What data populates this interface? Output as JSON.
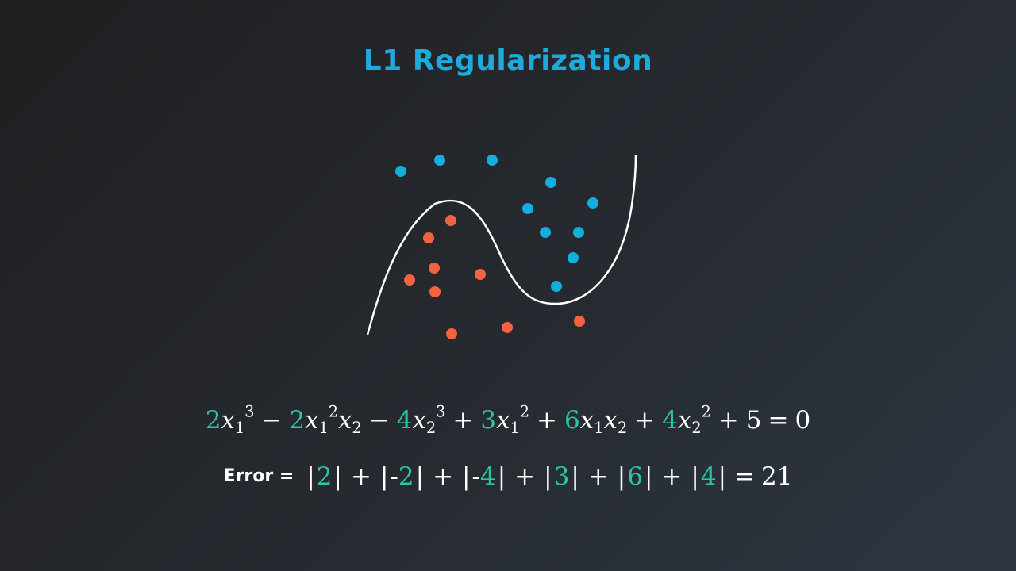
{
  "title": "L1 Regularization",
  "colors": {
    "blue_points": "#12aee0",
    "red_points": "#f4623f",
    "curve": "#ffffff",
    "coefficients": "#2bc4a4",
    "title": "#1eaadb"
  },
  "equation": {
    "terms": [
      {
        "sign": "",
        "coef": "2",
        "vars": [
          [
            "x",
            "1",
            "3"
          ]
        ]
      },
      {
        "sign": "−",
        "coef": "2",
        "vars": [
          [
            "x",
            "1",
            "2"
          ],
          [
            "x",
            "2",
            ""
          ]
        ]
      },
      {
        "sign": "−",
        "coef": "4",
        "vars": [
          [
            "x",
            "2",
            "3"
          ]
        ]
      },
      {
        "sign": "+",
        "coef": "3",
        "vars": [
          [
            "x",
            "1",
            "2"
          ]
        ]
      },
      {
        "sign": "+",
        "coef": "6",
        "vars": [
          [
            "x",
            "1",
            ""
          ],
          [
            "x",
            "2",
            ""
          ]
        ]
      },
      {
        "sign": "+",
        "coef": "4",
        "vars": [
          [
            "x",
            "2",
            "2"
          ]
        ]
      }
    ],
    "constant": "5",
    "rhs": "0"
  },
  "error": {
    "label": "Error =",
    "values": [
      "2",
      "-2",
      "-4",
      "3",
      "6",
      "4"
    ],
    "result": "21"
  }
}
